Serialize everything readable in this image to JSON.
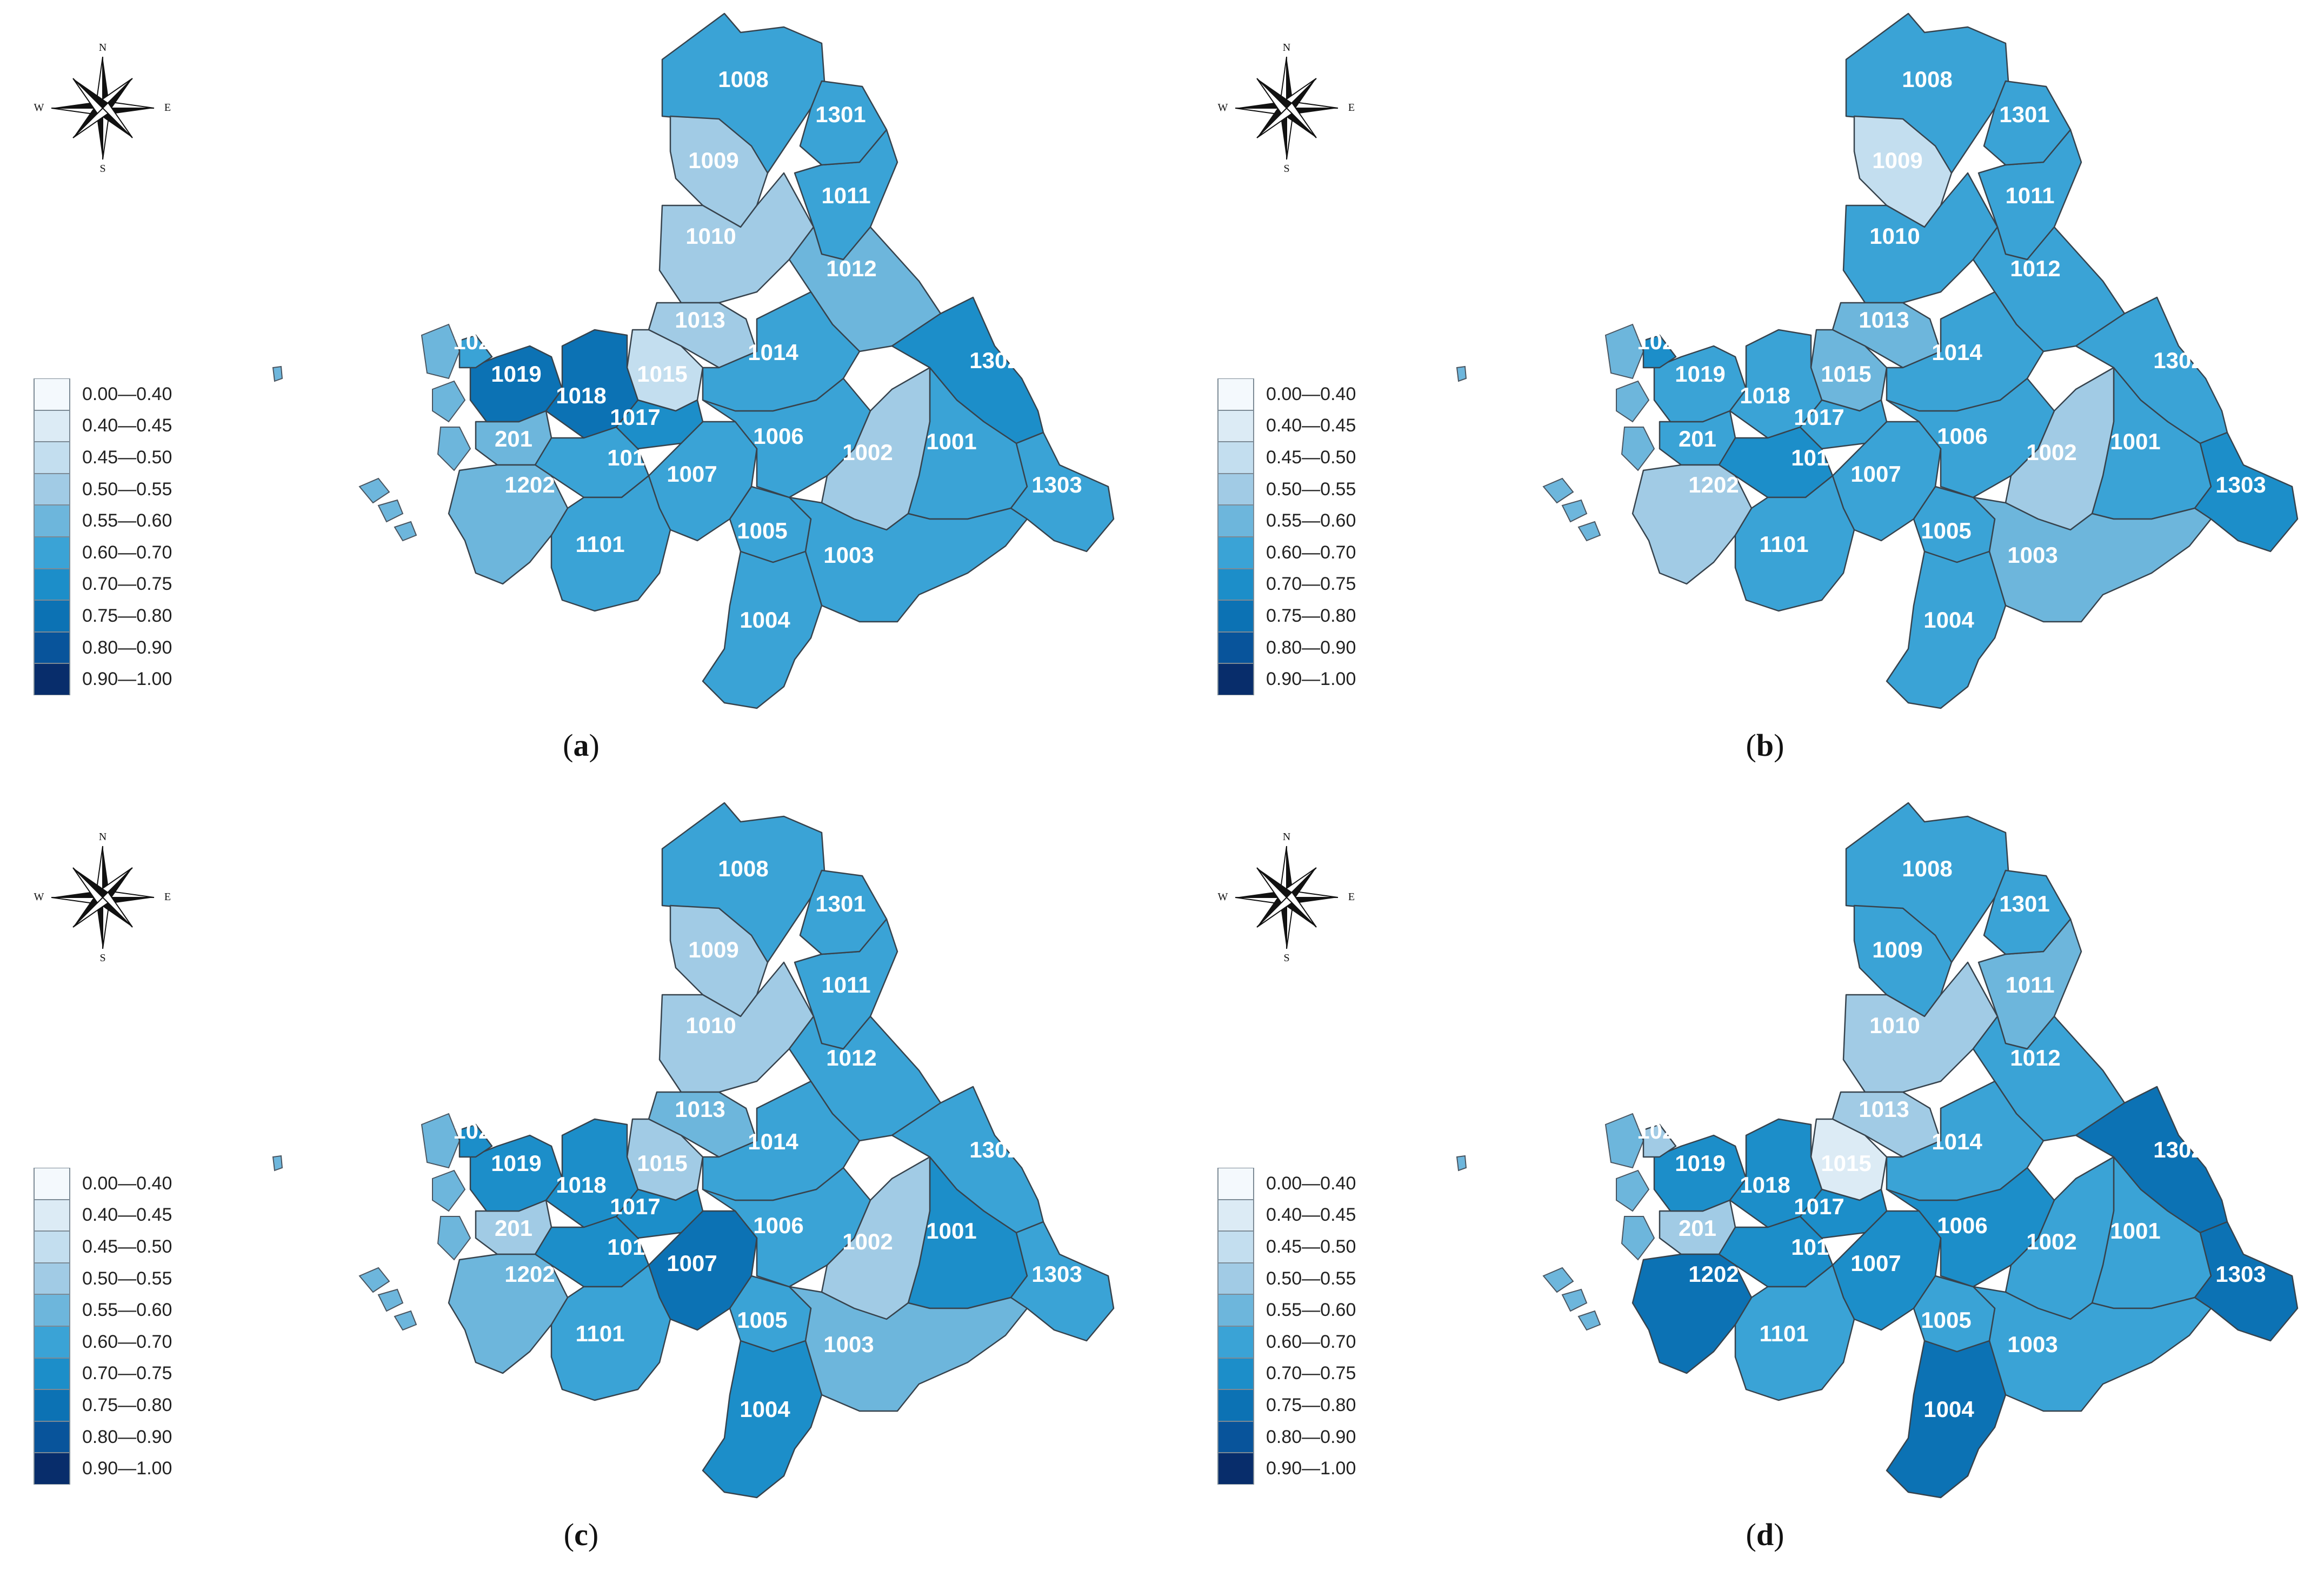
{
  "legend": [
    {
      "label": "0.00—0.40",
      "color": "#f4f9fd"
    },
    {
      "label": "0.40—0.45",
      "color": "#dcebf5"
    },
    {
      "label": "0.45—0.50",
      "color": "#c3deef"
    },
    {
      "label": "0.50—0.55",
      "color": "#a1cbe5"
    },
    {
      "label": "0.55—0.60",
      "color": "#6db6dc"
    },
    {
      "label": "0.60—0.70",
      "color": "#3aa3d6"
    },
    {
      "label": "0.70—0.75",
      "color": "#1c8ec9"
    },
    {
      "label": "0.75—0.80",
      "color": "#0c72b4"
    },
    {
      "label": "0.80—0.90",
      "color": "#08549b"
    },
    {
      "label": "0.90—1.00",
      "color": "#082d6b"
    }
  ],
  "compass": {
    "n": "N",
    "s": "S",
    "e": "E",
    "w": "W"
  },
  "panels": [
    {
      "caption_open": "(",
      "caption_letter": "a",
      "caption_close": ")",
      "classes": {
        "1008": 5,
        "1301": 5,
        "1009": 3,
        "1011": 5,
        "1010": 3,
        "1012": 4,
        "1013": 3,
        "1015": 2,
        "1014": 5,
        "1302": 6,
        "1024": 5,
        "1019": 7,
        "1018": 7,
        "1017": 6,
        "201": 4,
        "1016": 5,
        "1007": 5,
        "1006": 5,
        "1002": 3,
        "1001": 5,
        "1303": 5,
        "1202": 4,
        "1005": 5,
        "1101": 5,
        "1003": 5,
        "1004": 5
      }
    },
    {
      "caption_open": "(",
      "caption_letter": "b",
      "caption_close": ")",
      "classes": {
        "1008": 5,
        "1301": 5,
        "1009": 2,
        "1011": 5,
        "1010": 5,
        "1012": 5,
        "1013": 4,
        "1015": 4,
        "1014": 5,
        "1302": 5,
        "1024": 6,
        "1019": 5,
        "1018": 5,
        "1017": 5,
        "201": 5,
        "1016": 6,
        "1007": 5,
        "1006": 5,
        "1002": 3,
        "1001": 5,
        "1303": 6,
        "1202": 3,
        "1005": 5,
        "1101": 5,
        "1003": 4,
        "1004": 5
      }
    },
    {
      "caption_open": "(",
      "caption_letter": "c",
      "caption_close": ")",
      "classes": {
        "1008": 5,
        "1301": 5,
        "1009": 3,
        "1011": 5,
        "1010": 3,
        "1012": 5,
        "1013": 4,
        "1015": 3,
        "1014": 5,
        "1302": 5,
        "1024": 6,
        "1019": 6,
        "1018": 6,
        "1017": 6,
        "201": 3,
        "1016": 6,
        "1007": 7,
        "1006": 5,
        "1002": 3,
        "1001": 6,
        "1303": 5,
        "1202": 4,
        "1005": 5,
        "1101": 5,
        "1003": 4,
        "1004": 6
      }
    },
    {
      "caption_open": "(",
      "caption_letter": "d",
      "caption_close": ")",
      "classes": {
        "1008": 5,
        "1301": 5,
        "1009": 5,
        "1011": 4,
        "1010": 3,
        "1012": 5,
        "1013": 3,
        "1015": 1,
        "1014": 5,
        "1302": 7,
        "1024": 3,
        "1019": 6,
        "1018": 6,
        "1017": 6,
        "201": 3,
        "1016": 6,
        "1007": 6,
        "1006": 6,
        "1002": 5,
        "1001": 5,
        "1303": 7,
        "1202": 7,
        "1005": 5,
        "1101": 5,
        "1003": 5,
        "1004": 7
      }
    }
  ]
}
